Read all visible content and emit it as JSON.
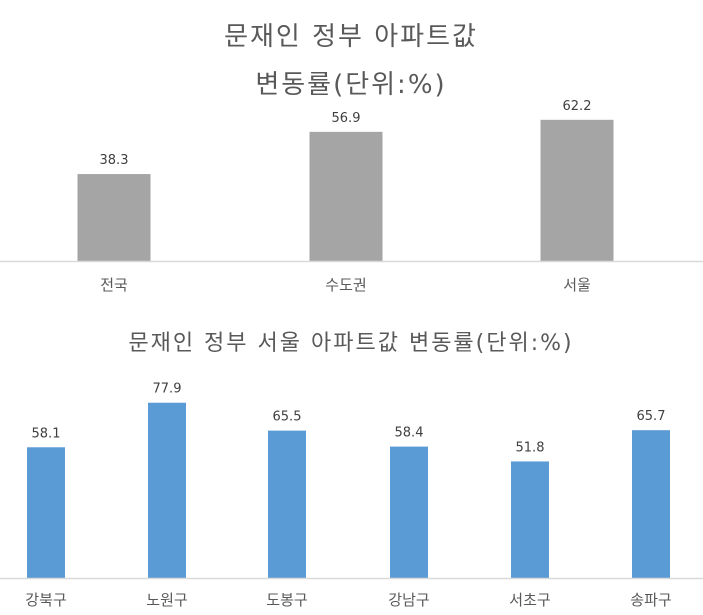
{
  "chart_data": [
    {
      "type": "bar",
      "title": [
        "문재인 정부 아파트값",
        "변동률(단위:%)"
      ],
      "categories": [
        "전국",
        "수도권",
        "서울"
      ],
      "values": [
        38.3,
        56.9,
        62.2
      ],
      "data_labels": [
        "38.3",
        "56.9",
        "62.2"
      ],
      "ylim": [
        0,
        75
      ],
      "grid": false,
      "legend": "none",
      "bar_color": "#a5a5a5"
    },
    {
      "type": "bar",
      "title": [
        "문재인 정부 서울 아파트값 변동률(단위:%)"
      ],
      "categories": [
        "강북구",
        "노원구",
        "도봉구",
        "강남구",
        "서초구",
        "송파구"
      ],
      "values": [
        58.1,
        77.9,
        65.5,
        58.4,
        51.8,
        65.7
      ],
      "data_labels": [
        "58.1",
        "77.9",
        "65.5",
        "58.4",
        "51.8",
        "65.7"
      ],
      "ylim": [
        0,
        85
      ],
      "grid": false,
      "legend": "none",
      "bar_color": "#5b9bd5"
    }
  ]
}
